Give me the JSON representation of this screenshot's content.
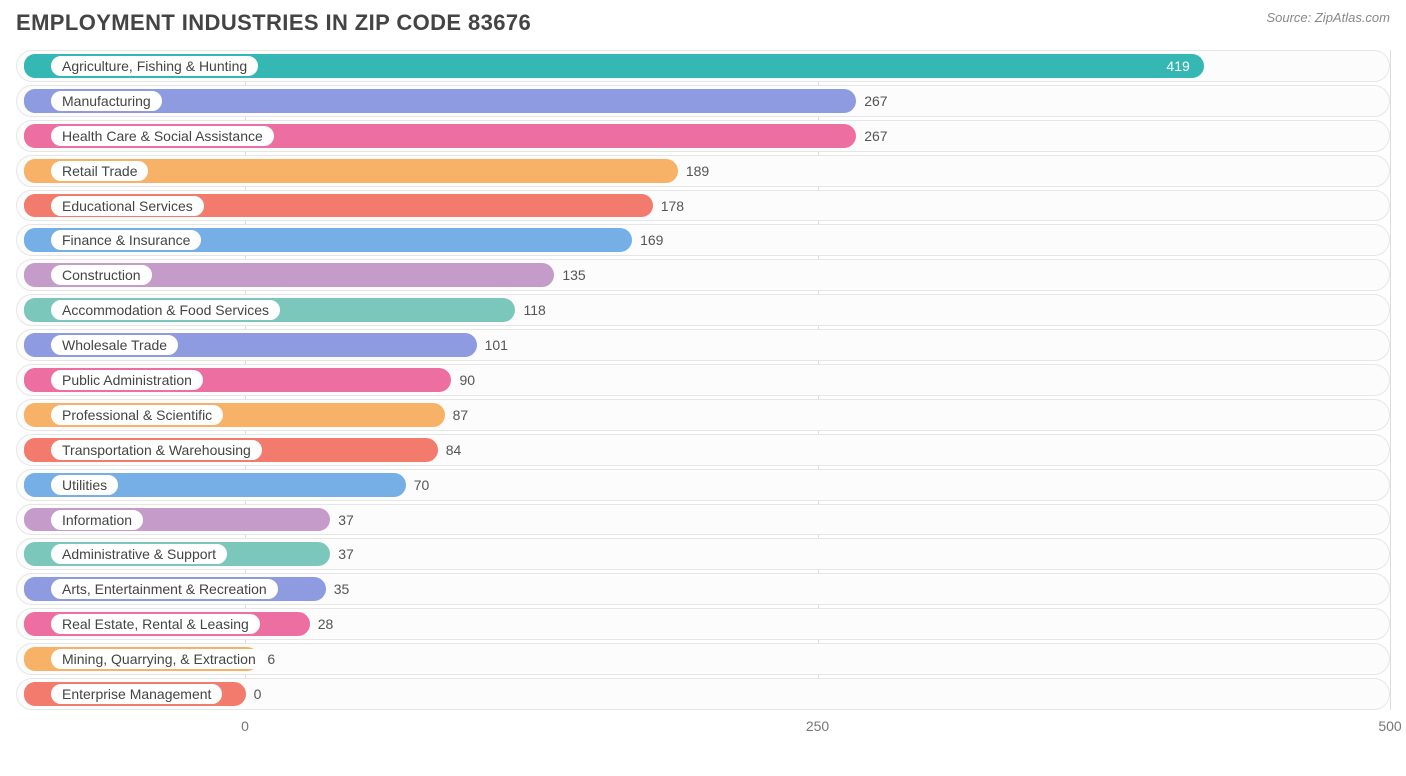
{
  "title": "EMPLOYMENT INDUSTRIES IN ZIP CODE 83676",
  "source_prefix": "Source: ",
  "source_name": "ZipAtlas.com",
  "chart": {
    "type": "bar-horizontal",
    "x_min": -100,
    "x_max": 500,
    "ticks": [
      0,
      250,
      500
    ],
    "bar_origin_value": -100,
    "track_border_color": "#e6e6e6",
    "grid_color": "#dcdcdc",
    "background_color": "#ffffff",
    "label_fontsize": 14,
    "title_fontsize": 22,
    "colors": {
      "teal": "#35b8b3",
      "violet": "#8f9be0",
      "pink": "#ed6ea0",
      "orange": "#f7b267",
      "coral": "#f27b6d",
      "blue": "#76aee6",
      "mauve": "#c49bc9",
      "seafoam": "#7cc7bb"
    },
    "rows": [
      {
        "label": "Agriculture, Fishing & Hunting",
        "value": 419,
        "color": "teal",
        "value_inside": true
      },
      {
        "label": "Manufacturing",
        "value": 267,
        "color": "violet",
        "value_inside": false
      },
      {
        "label": "Health Care & Social Assistance",
        "value": 267,
        "color": "pink",
        "value_inside": false
      },
      {
        "label": "Retail Trade",
        "value": 189,
        "color": "orange",
        "value_inside": false
      },
      {
        "label": "Educational Services",
        "value": 178,
        "color": "coral",
        "value_inside": false
      },
      {
        "label": "Finance & Insurance",
        "value": 169,
        "color": "blue",
        "value_inside": false
      },
      {
        "label": "Construction",
        "value": 135,
        "color": "mauve",
        "value_inside": false
      },
      {
        "label": "Accommodation & Food Services",
        "value": 118,
        "color": "seafoam",
        "value_inside": false
      },
      {
        "label": "Wholesale Trade",
        "value": 101,
        "color": "violet",
        "value_inside": false
      },
      {
        "label": "Public Administration",
        "value": 90,
        "color": "pink",
        "value_inside": false
      },
      {
        "label": "Professional & Scientific",
        "value": 87,
        "color": "orange",
        "value_inside": false
      },
      {
        "label": "Transportation & Warehousing",
        "value": 84,
        "color": "coral",
        "value_inside": false
      },
      {
        "label": "Utilities",
        "value": 70,
        "color": "blue",
        "value_inside": false
      },
      {
        "label": "Information",
        "value": 37,
        "color": "mauve",
        "value_inside": false
      },
      {
        "label": "Administrative & Support",
        "value": 37,
        "color": "seafoam",
        "value_inside": false
      },
      {
        "label": "Arts, Entertainment & Recreation",
        "value": 35,
        "color": "violet",
        "value_inside": false
      },
      {
        "label": "Real Estate, Rental & Leasing",
        "value": 28,
        "color": "pink",
        "value_inside": false
      },
      {
        "label": "Mining, Quarrying, & Extraction",
        "value": 6,
        "color": "orange",
        "value_inside": false
      },
      {
        "label": "Enterprise Management",
        "value": 0,
        "color": "coral",
        "value_inside": false
      }
    ]
  }
}
